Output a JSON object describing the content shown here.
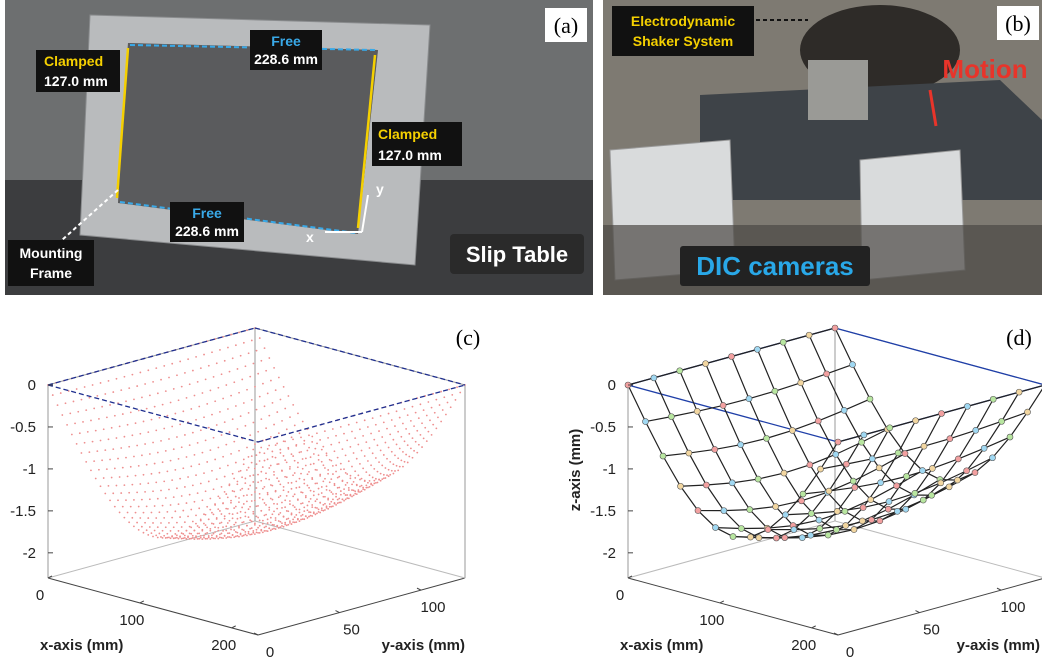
{
  "photo_a": {
    "label": "(a)",
    "clamped_left": [
      "Clamped",
      "127.0 mm"
    ],
    "free_top": [
      "Free",
      "228.6 mm"
    ],
    "clamped_right": [
      "Clamped",
      "127.0 mm"
    ],
    "free_bottom": [
      "Free",
      "228.6 mm"
    ],
    "x": "x",
    "y": "y",
    "mounting_frame": [
      "Mounting",
      "Frame"
    ],
    "slip_table": "Slip Table"
  },
  "photo_b": {
    "label": "(b)",
    "shaker": [
      "Electrodynamic",
      "Shaker System"
    ],
    "motion": "Motion",
    "cameras": "DIC cameras"
  },
  "plots": [
    {
      "label": "(c)",
      "xlabel": "x-axis (mm)",
      "ylabel": "y-axis (mm)",
      "xlim": [
        0,
        228.6
      ],
      "ylim": [
        0,
        127
      ],
      "zlim": [
        -2.3,
        0
      ],
      "xticks": [
        0,
        100,
        200
      ],
      "yticks": [
        0,
        50,
        100
      ],
      "zticks": [
        0,
        -0.5,
        -1,
        -1.5,
        -2
      ]
    },
    {
      "label": "(d)",
      "xlabel": "x-axis (mm)",
      "ylabel": "y-axis (mm)",
      "zlabel": "z-axis (mm)",
      "xlim": [
        0,
        228.6
      ],
      "ylim": [
        0,
        127
      ],
      "zlim": [
        -2.3,
        0
      ],
      "xticks": [
        0,
        100,
        200
      ],
      "yticks": [
        0,
        50,
        100
      ],
      "zticks": [
        0,
        -0.5,
        -1,
        -1.5,
        -2
      ]
    }
  ]
}
